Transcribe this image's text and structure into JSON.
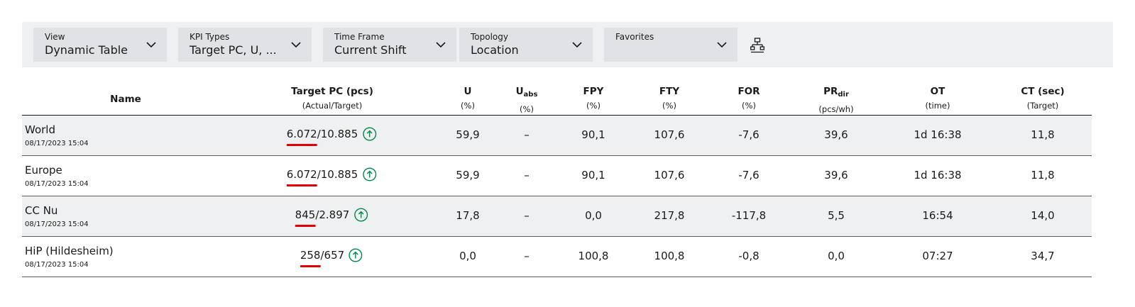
{
  "filters": {
    "view": {
      "label": "View",
      "value": "Dynamic Table"
    },
    "kpi_types": {
      "label": "KPI Types",
      "value": "Target PC, U, ..."
    },
    "time_frame": {
      "label": "Time Frame",
      "value": "Current Shift"
    },
    "topology": {
      "label": "Topology",
      "value": "Location"
    },
    "favorites": {
      "label": "Favorites",
      "value": ""
    },
    "topology_button_icon": "hierarchy-icon"
  },
  "table": {
    "columns": {
      "name": {
        "title": "Name"
      },
      "target_pc": {
        "title": "Target PC (pcs)",
        "sub": "(Actual/Target)"
      },
      "u": {
        "title": "U",
        "sub": "(%)"
      },
      "uabs": {
        "title": "U",
        "title_sub": "abs",
        "sub": "(%)"
      },
      "fpy": {
        "title": "FPY",
        "sub": "(%)"
      },
      "fty": {
        "title": "FTY",
        "sub": "(%)"
      },
      "for": {
        "title": "FOR",
        "sub": "(%)"
      },
      "prdir": {
        "title": "PR",
        "title_sub": "dir",
        "sub": "(pcs/wh)"
      },
      "ot": {
        "title": "OT",
        "sub": "(time)"
      },
      "ct": {
        "title": "CT (sec)",
        "sub": "(Target)"
      }
    },
    "rows": [
      {
        "name": "World",
        "timestamp": "08/17/2023 15:04",
        "actual": "6.072",
        "target": "/10.885",
        "trend_icon": "arrow-up-circle-icon",
        "u": "59,9",
        "uabs": "–",
        "fpy": "90,1",
        "fty": "107,6",
        "for": "-7,6",
        "prdir": "39,6",
        "ot": "1d 16:38",
        "ct": "11,8"
      },
      {
        "name": "Europe",
        "timestamp": "08/17/2023 15:04",
        "actual": "6.072",
        "target": "/10.885",
        "trend_icon": "arrow-up-circle-icon",
        "u": "59,9",
        "uabs": "–",
        "fpy": "90,1",
        "fty": "107,6",
        "for": "-7,6",
        "prdir": "39,6",
        "ot": "1d 16:38",
        "ct": "11,8"
      },
      {
        "name": "CC Nu",
        "timestamp": "08/17/2023 15:04",
        "actual": "845",
        "target": "/2.897",
        "trend_icon": "arrow-up-circle-icon",
        "u": "17,8",
        "uabs": "–",
        "fpy": "0,0",
        "fty": "217,8",
        "for": "-117,8",
        "prdir": "5,5",
        "ot": "16:54",
        "ct": "14,0"
      },
      {
        "name": "HiP (Hildesheim)",
        "timestamp": "08/17/2023 15:04",
        "actual": "258",
        "target": "/657",
        "trend_icon": "arrow-up-circle-icon",
        "u": "0,0",
        "uabs": "–",
        "fpy": "100,8",
        "fty": "100,8",
        "for": "-0,8",
        "prdir": "0,0",
        "ot": "07:27",
        "ct": "34,7"
      }
    ]
  },
  "colors": {
    "filter_bar_bg": "#eff0f1",
    "dropdown_bg": "#e0e2e5",
    "alt_row_bg": "#eff0f1",
    "actual_underline": "#e00000",
    "trend_green": "#00884a"
  }
}
